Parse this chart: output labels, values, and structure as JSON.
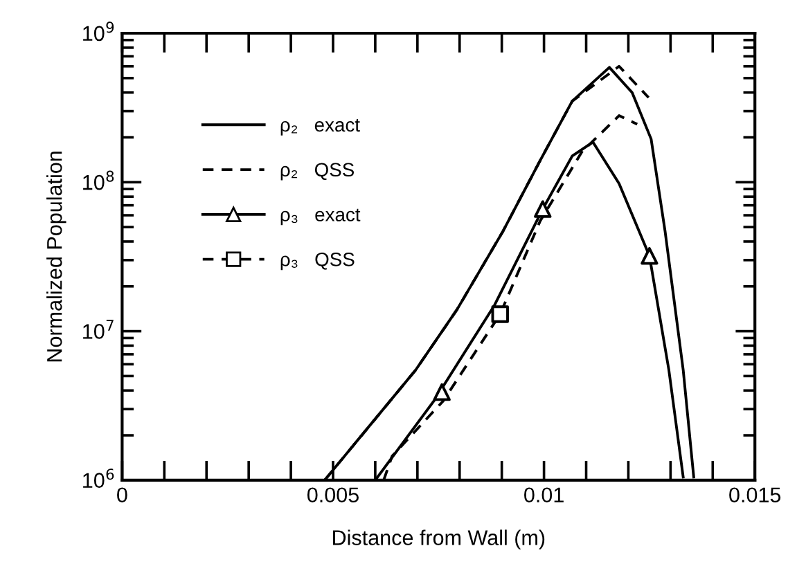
{
  "chart_data": {
    "type": "line",
    "xlabel": "Distance from Wall (m)",
    "ylabel": "Normalized Population",
    "log": "y",
    "xlim": [
      0,
      0.015
    ],
    "ylim": [
      1000000,
      1000000000
    ],
    "xticks": [
      0,
      {
        "value": 0.001,
        "label": null
      },
      {
        "value": 0.002,
        "label": null
      },
      {
        "value": 0.003,
        "label": null
      },
      {
        "value": 0.004,
        "label": null
      },
      0.005,
      {
        "value": 0.006,
        "label": null
      },
      {
        "value": 0.007,
        "label": null
      },
      {
        "value": 0.008,
        "label": null
      },
      {
        "value": 0.009,
        "label": null
      },
      0.01,
      {
        "value": 0.011,
        "label": null
      },
      {
        "value": 0.012,
        "label": null
      },
      {
        "value": 0.013,
        "label": null
      },
      {
        "value": 0.014,
        "label": null
      },
      0.015
    ],
    "yticks": [
      {
        "value": 1000000,
        "label": "10$^{6}$"
      },
      {
        "value": 2000000,
        "label": null
      },
      {
        "value": 3000000,
        "label": null
      },
      {
        "value": 4000000,
        "label": null
      },
      {
        "value": 5000000,
        "label": null
      },
      {
        "value": 6000000,
        "label": null
      },
      {
        "value": 7000000,
        "label": null
      },
      {
        "value": 8000000,
        "label": null
      },
      {
        "value": 9000000,
        "label": null
      },
      {
        "value": 10000000,
        "label": "10$^{7}$"
      },
      {
        "value": 20000000,
        "label": null
      },
      {
        "value": 30000000,
        "label": null
      },
      {
        "value": 40000000,
        "label": null
      },
      {
        "value": 50000000,
        "label": null
      },
      {
        "value": 60000000,
        "label": null
      },
      {
        "value": 70000000,
        "label": null
      },
      {
        "value": 80000000,
        "label": null
      },
      {
        "value": 90000000,
        "label": null
      },
      {
        "value": 100000000,
        "label": "10$^{8}$"
      },
      {
        "value": 200000000,
        "label": null
      },
      {
        "value": 300000000,
        "label": null
      },
      {
        "value": 400000000,
        "label": null
      },
      {
        "value": 500000000,
        "label": null
      },
      {
        "value": 600000000,
        "label": null
      },
      {
        "value": 700000000,
        "label": null
      },
      {
        "value": 800000000,
        "label": null
      },
      {
        "value": 900000000,
        "label": null
      },
      {
        "value": 1000000000,
        "label": "10$^{9}$"
      }
    ],
    "legend": "upper left",
    "grid": false,
    "series": [
      {
        "name": "ρ₂   exact",
        "color": "#000000",
        "line_style": "solid",
        "marker": "none",
        "x": [
          0.0048,
          0.00696,
          0.00794,
          0.00903,
          0.00991,
          0.01067,
          0.01155,
          0.01209,
          0.01254,
          0.01287,
          0.0133,
          0.01355
        ],
        "values": [
          1000000,
          5500000,
          14000000,
          47000000,
          140000000,
          350000000,
          590000000,
          400000000,
          195000000,
          47000000,
          5500000,
          1050000
        ]
      },
      {
        "name": "ρ₂   QSS",
        "color": "#000000",
        "line_style": "dashed",
        "marker": "none",
        "x": [
          0.0048,
          0.00696,
          0.00794,
          0.00903,
          0.00991,
          0.01067,
          0.01178,
          0.01248
        ],
        "values": [
          1000000,
          5500000,
          14000000,
          47000000,
          140000000,
          350000000,
          600000000,
          370000000
        ]
      },
      {
        "name": "ρ₃   exact",
        "color": "#000000",
        "line_style": "solid",
        "x": [
          0.006,
          0.00739,
          0.00883,
          0.00997,
          0.01067,
          0.01116,
          0.01178,
          0.0125,
          0.01296,
          0.0133
        ],
        "values": [
          1000000,
          3400000,
          15000000,
          66000000,
          150000000,
          186000000,
          98000000,
          32000000,
          5500000,
          1050000
        ]
      },
      {
        "type": "scatter",
        "color": "#000000",
        "marker": "triangle",
        "x": [
          0.00758,
          0.00997,
          0.0125
        ],
        "values": [
          3900000,
          66000000,
          32000000
        ]
      },
      {
        "name": "ρ₃   QSS",
        "color": "#000000",
        "line_style": "dashed",
        "x": [
          0.0062,
          0.0064,
          0.00761,
          0.00896,
          0.00991,
          0.0109,
          0.01178,
          0.01221
        ],
        "values": [
          1000000,
          1450000,
          3400000,
          13000000,
          55000000,
          160000000,
          280000000,
          245000000
        ]
      },
      {
        "type": "scatter",
        "color": "#000000",
        "marker": "square",
        "x": [
          0.00896
        ],
        "values": [
          13000000
        ]
      }
    ]
  }
}
